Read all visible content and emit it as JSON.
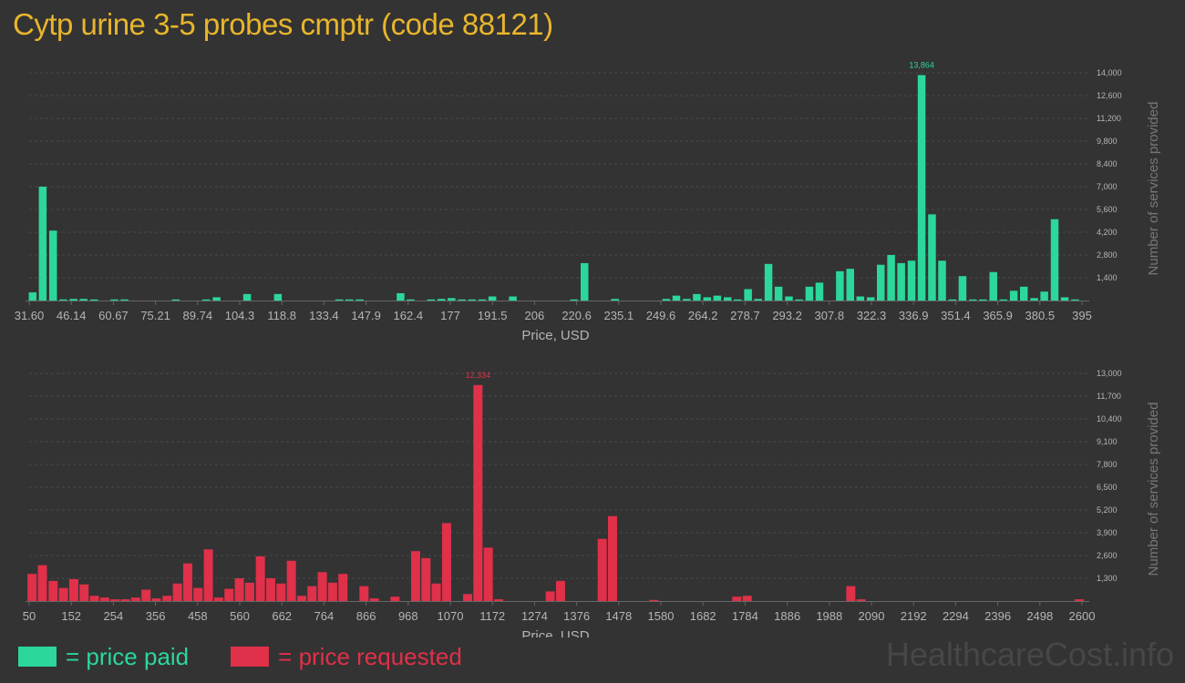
{
  "page": {
    "title": "Cytp urine 3-5 probes cmptr (code 88121)",
    "watermark": "HealthcareCost.info",
    "legend": {
      "paid_label": "= price paid",
      "requested_label": "= price requested",
      "paid_color": "#2bd79a",
      "requested_color": "#e0304a"
    }
  },
  "chart_data": [
    {
      "type": "bar",
      "name": "price-paid",
      "color": "#2bd79a",
      "xlabel": "Price, USD",
      "ylabel": "Number of services provided",
      "xlim": [
        29.3,
        395
      ],
      "ylim": [
        0,
        14000
      ],
      "xticks": [
        "31.60",
        "46.14",
        "60.67",
        "75.21",
        "89.74",
        "104.3",
        "118.8",
        "133.4",
        "147.9",
        "162.4",
        "177",
        "191.5",
        "206",
        "220.6",
        "235.1",
        "249.6",
        "264.2",
        "278.7",
        "293.2",
        "307.8",
        "322.3",
        "336.9",
        "351.4",
        "365.9",
        "380.5",
        "395"
      ],
      "yticks": [
        "1,400",
        "2,800",
        "4,200",
        "5,600",
        "7,000",
        "8,400",
        "9,800",
        "11,200",
        "12,600",
        "14,000"
      ],
      "peak_label": "13,864",
      "x": [
        30.5,
        34.0,
        37.6,
        41.1,
        44.7,
        48.2,
        51.8,
        55.3,
        58.9,
        62.4,
        66.0,
        69.5,
        73.1,
        76.6,
        80.2,
        83.7,
        87.3,
        90.8,
        94.4,
        97.9,
        101.5,
        105.0,
        108.6,
        112.1,
        115.7,
        119.2,
        122.8,
        126.3,
        129.9,
        133.4,
        137.0,
        140.5,
        144.1,
        147.6,
        151.2,
        154.7,
        158.3,
        161.8,
        165.4,
        168.9,
        172.5,
        176.0,
        179.6,
        183.1,
        186.7,
        190.2,
        193.8,
        197.3,
        200.9,
        204.4,
        208.0,
        211.5,
        215.1,
        218.6,
        222.2,
        225.7,
        229.3,
        232.8,
        236.4,
        239.9,
        243.5,
        247.0,
        250.6,
        254.1,
        257.7,
        261.2,
        264.8,
        268.3,
        271.9,
        275.4,
        279.0,
        282.5,
        286.1,
        289.6,
        293.2,
        296.7,
        300.3,
        303.8,
        307.4,
        310.9,
        314.5,
        318.0,
        321.6,
        325.1,
        328.7,
        332.2,
        335.8,
        339.3,
        342.9,
        346.4,
        350.0,
        353.5,
        357.1,
        360.6,
        364.2,
        367.7,
        371.3,
        374.8,
        378.4,
        381.9,
        385.5,
        389.0,
        392.6
      ],
      "values": [
        500,
        7000,
        4300,
        50,
        100,
        100,
        50,
        0,
        50,
        50,
        0,
        0,
        0,
        0,
        50,
        0,
        0,
        50,
        200,
        0,
        0,
        400,
        0,
        0,
        400,
        0,
        0,
        0,
        0,
        0,
        50,
        50,
        50,
        0,
        0,
        0,
        450,
        50,
        0,
        50,
        100,
        150,
        50,
        50,
        50,
        250,
        0,
        250,
        0,
        0,
        0,
        0,
        0,
        50,
        2300,
        0,
        0,
        100,
        0,
        0,
        0,
        0,
        100,
        300,
        100,
        400,
        200,
        300,
        200,
        50,
        700,
        100,
        2250,
        850,
        250,
        50,
        850,
        1100,
        0,
        1800,
        1950,
        250,
        200,
        2200,
        2800,
        2300,
        2450,
        13864,
        5300,
        2450,
        50,
        1500,
        50,
        50,
        1750,
        50,
        600,
        850,
        150,
        550,
        5000,
        200,
        50
      ]
    },
    {
      "type": "bar",
      "name": "price-requested",
      "color": "#e0304a",
      "xlabel": "Price, USD",
      "ylabel": "Number of services provided",
      "xlim": [
        50,
        2600
      ],
      "ylim": [
        0,
        13000
      ],
      "xticks": [
        "50",
        "152",
        "254",
        "356",
        "458",
        "560",
        "662",
        "764",
        "866",
        "968",
        "1070",
        "1172",
        "1274",
        "1376",
        "1478",
        "1580",
        "1682",
        "1784",
        "1886",
        "1988",
        "2090",
        "2192",
        "2294",
        "2396",
        "2498",
        "2600"
      ],
      "yticks": [
        "1,300",
        "2,600",
        "3,900",
        "5,200",
        "6,500",
        "7,800",
        "9,100",
        "10,400",
        "11,700",
        "13,000"
      ],
      "peak_label": "12,334",
      "x": [
        57,
        82,
        108,
        133,
        158,
        183,
        208,
        233,
        258,
        283,
        308,
        333,
        358,
        384,
        409,
        434,
        459,
        484,
        509,
        534,
        559,
        584,
        610,
        635,
        660,
        685,
        710,
        735,
        760,
        785,
        810,
        835,
        861,
        886,
        911,
        936,
        961,
        986,
        1011,
        1036,
        1061,
        1086,
        1112,
        1137,
        1162,
        1187,
        1212,
        1237,
        1262,
        1287,
        1312,
        1337,
        1363,
        1388,
        1413,
        1438,
        1463,
        1488,
        1513,
        1538,
        1563,
        1589,
        1614,
        1639,
        1664,
        1689,
        1714,
        1739,
        1764,
        1789,
        1815,
        1840,
        1865,
        1890,
        1915,
        1940,
        1965,
        1990,
        2015,
        2040,
        2065,
        2091,
        2116,
        2141,
        2166,
        2191,
        2216,
        2241,
        2266,
        2292,
        2317,
        2342,
        2367,
        2392,
        2417,
        2442,
        2467,
        2492,
        2517,
        2543,
        2568,
        2593
      ],
      "values": [
        1550,
        2050,
        1150,
        750,
        1250,
        950,
        300,
        200,
        100,
        100,
        200,
        650,
        150,
        300,
        1000,
        2150,
        750,
        2950,
        200,
        700,
        1300,
        1050,
        2550,
        1300,
        1000,
        2300,
        300,
        850,
        1650,
        1050,
        1550,
        0,
        850,
        150,
        0,
        250,
        0,
        2850,
        2450,
        1000,
        4450,
        0,
        400,
        12334,
        3050,
        100,
        0,
        0,
        0,
        0,
        550,
        1150,
        0,
        0,
        0,
        3550,
        4850,
        0,
        0,
        0,
        50,
        0,
        0,
        0,
        0,
        0,
        0,
        0,
        250,
        300,
        0,
        0,
        0,
        0,
        0,
        0,
        0,
        0,
        0,
        850,
        100,
        0,
        0,
        0,
        0,
        0,
        0,
        0,
        0,
        0,
        0,
        0,
        0,
        0,
        0,
        0,
        0,
        0,
        0,
        0,
        0,
        100
      ]
    }
  ]
}
